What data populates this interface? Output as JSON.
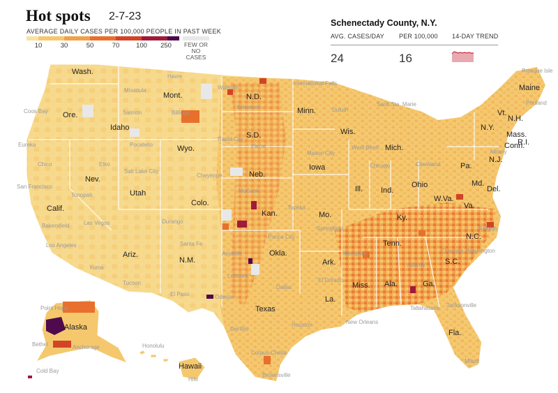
{
  "header": {
    "title": "Hot spots",
    "date": "2-7-23"
  },
  "legend": {
    "title": "AVERAGE DAILY CASES PER 100,000 PEOPLE IN PAST WEEK",
    "ticks": [
      "10",
      "30",
      "50",
      "70",
      "100",
      "250"
    ],
    "nodata_label": "FEW OR NO CASES",
    "colors": [
      "#f7e3a0",
      "#f5c86e",
      "#f0a148",
      "#e8702c",
      "#d24426",
      "#a01a3b",
      "#4e0a4c"
    ],
    "nodata_color": "#e8e8e8"
  },
  "county_panel": {
    "title": "Schenectady County, N.Y.",
    "avg_label": "AVG. CASES/DAY",
    "per_label": "PER 100,000",
    "trend_label": "14-DAY TREND",
    "avg_value": "24",
    "per_value": "16",
    "trend_color": "#e9a9b0"
  },
  "map": {
    "states": [
      {
        "name": "Wash."
      },
      {
        "name": "Ore."
      },
      {
        "name": "Calif."
      },
      {
        "name": "Nev."
      },
      {
        "name": "Idaho"
      },
      {
        "name": "Mont."
      },
      {
        "name": "Wyo."
      },
      {
        "name": "Utah"
      },
      {
        "name": "Ariz."
      },
      {
        "name": "Colo."
      },
      {
        "name": "N.M."
      },
      {
        "name": "N.D."
      },
      {
        "name": "S.D."
      },
      {
        "name": "Neb."
      },
      {
        "name": "Kan."
      },
      {
        "name": "Okla."
      },
      {
        "name": "Texas"
      },
      {
        "name": "Minn."
      },
      {
        "name": "Iowa"
      },
      {
        "name": "Mo."
      },
      {
        "name": "Ark."
      },
      {
        "name": "La."
      },
      {
        "name": "Wis."
      },
      {
        "name": "Ill."
      },
      {
        "name": "Mich."
      },
      {
        "name": "Ind."
      },
      {
        "name": "Ohio"
      },
      {
        "name": "Ky."
      },
      {
        "name": "Tenn."
      },
      {
        "name": "Miss."
      },
      {
        "name": "Ala."
      },
      {
        "name": "Ga."
      },
      {
        "name": "Fla."
      },
      {
        "name": "S.C."
      },
      {
        "name": "N.C."
      },
      {
        "name": "Va."
      },
      {
        "name": "W.Va."
      },
      {
        "name": "Pa."
      },
      {
        "name": "N.Y."
      },
      {
        "name": "Vt."
      },
      {
        "name": "N.H."
      },
      {
        "name": "Maine"
      },
      {
        "name": "Mass."
      },
      {
        "name": "R.I."
      },
      {
        "name": "Conn."
      },
      {
        "name": "N.J."
      },
      {
        "name": "Del."
      },
      {
        "name": "Md."
      },
      {
        "name": "Alaska"
      },
      {
        "name": "Hawaii"
      }
    ],
    "cities": [
      {
        "name": "Havre"
      },
      {
        "name": "Williston"
      },
      {
        "name": "International Falls"
      },
      {
        "name": "Missoula"
      },
      {
        "name": "Billings"
      },
      {
        "name": "Bismarck"
      },
      {
        "name": "Duluth"
      },
      {
        "name": "Sault Ste. Marie"
      },
      {
        "name": "Presque Isle"
      },
      {
        "name": "Portland"
      },
      {
        "name": "Coos Bay"
      },
      {
        "name": "Salmon"
      },
      {
        "name": "Pocatello"
      },
      {
        "name": "Rapid City"
      },
      {
        "name": "Pierre"
      },
      {
        "name": "Eureka"
      },
      {
        "name": "Chico"
      },
      {
        "name": "Elko"
      },
      {
        "name": "Salt Lake City"
      },
      {
        "name": "Cheyenne"
      },
      {
        "name": "Mason City"
      },
      {
        "name": "West Bend"
      },
      {
        "name": "Chicago"
      },
      {
        "name": "Cleveland"
      },
      {
        "name": "Albany"
      },
      {
        "name": "San Francisco"
      },
      {
        "name": "Tonopah"
      },
      {
        "name": "McCook"
      },
      {
        "name": "Topeka"
      },
      {
        "name": "Springfield"
      },
      {
        "name": "Bakersfield"
      },
      {
        "name": "Las Vegas"
      },
      {
        "name": "Durango"
      },
      {
        "name": "Los Angeles"
      },
      {
        "name": "Santa Fe"
      },
      {
        "name": "Amarillo"
      },
      {
        "name": "Ponca City"
      },
      {
        "name": "Yuma"
      },
      {
        "name": "Tucson"
      },
      {
        "name": "Lubbock"
      },
      {
        "name": "El Paso"
      },
      {
        "name": "Odessa"
      },
      {
        "name": "Dallas"
      },
      {
        "name": "El Dorado"
      },
      {
        "name": "Atlanta"
      },
      {
        "name": "Charlotte"
      },
      {
        "name": "Raleigh"
      },
      {
        "name": "Washington"
      },
      {
        "name": "Tallahassee"
      },
      {
        "name": "Del Rio"
      },
      {
        "name": "Houston"
      },
      {
        "name": "New Orleans"
      },
      {
        "name": "Corpus Christi"
      },
      {
        "name": "Brownsville"
      },
      {
        "name": "Miami"
      },
      {
        "name": "Honolulu"
      },
      {
        "name": "Hilo"
      },
      {
        "name": "Point Hope"
      },
      {
        "name": "Anchorage"
      },
      {
        "name": "Cold Bay"
      },
      {
        "name": "Bethel"
      },
      {
        "name": "Memphis"
      },
      {
        "name": "Jacksonville"
      }
    ]
  }
}
